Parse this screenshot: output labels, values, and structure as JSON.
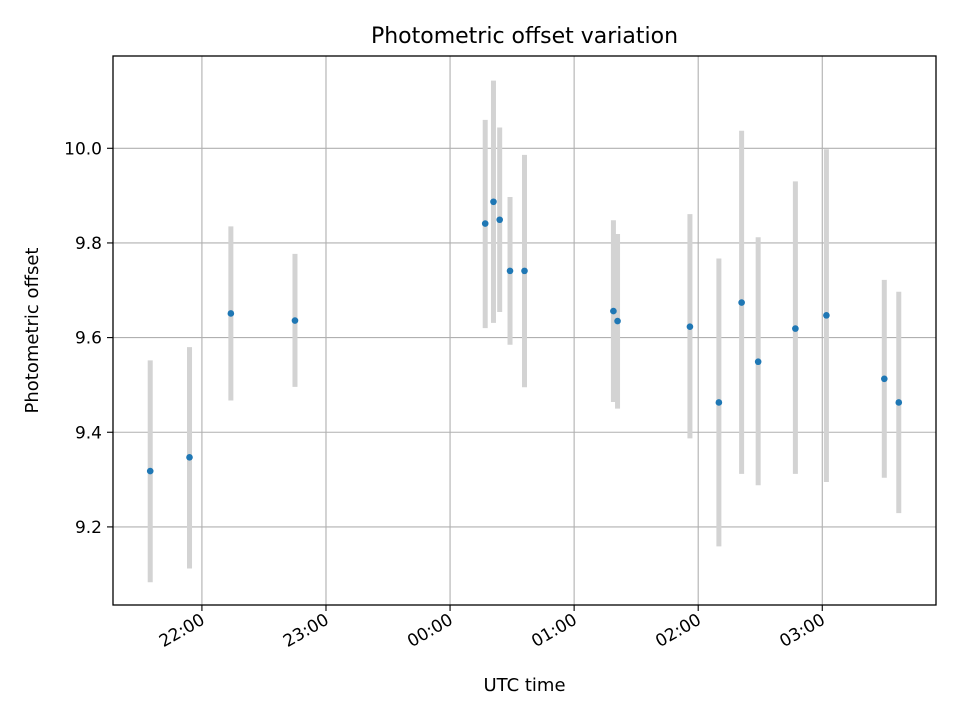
{
  "chart_data": {
    "type": "scatter",
    "title": "Photometric offset variation",
    "xlabel": "UTC time",
    "ylabel": "Photometric offset",
    "x_unit": "UTC time (HH:MM)",
    "xlim": [
      "21:17",
      "03:55"
    ],
    "ylim": [
      9.035,
      10.195
    ],
    "x_ticks": [
      "22:00",
      "23:00",
      "00:00",
      "01:00",
      "02:00",
      "03:00"
    ],
    "y_ticks": [
      9.2,
      9.4,
      9.6,
      9.8,
      10.0
    ],
    "y_tick_labels": [
      "9.2",
      "9.4",
      "9.6",
      "9.8",
      "10.0"
    ],
    "grid": true,
    "colors": {
      "point": "#1f77b4",
      "errorbar": "#d3d3d3",
      "grid": "#b0b0b0"
    },
    "series": [
      {
        "points": [
          {
            "x": "21:35",
            "y": 9.318,
            "err_low": 9.083,
            "err_high": 9.552
          },
          {
            "x": "21:54",
            "y": 9.347,
            "err_low": 9.112,
            "err_high": 9.58
          },
          {
            "x": "22:14",
            "y": 9.651,
            "err_low": 9.467,
            "err_high": 9.835
          },
          {
            "x": "22:45",
            "y": 9.636,
            "err_low": 9.496,
            "err_high": 9.777
          },
          {
            "x": "00:17",
            "y": 9.841,
            "err_low": 9.62,
            "err_high": 10.06
          },
          {
            "x": "00:21",
            "y": 9.887,
            "err_low": 9.631,
            "err_high": 10.143
          },
          {
            "x": "00:24",
            "y": 9.849,
            "err_low": 9.654,
            "err_high": 10.044
          },
          {
            "x": "00:29",
            "y": 9.741,
            "err_low": 9.585,
            "err_high": 9.897
          },
          {
            "x": "00:36",
            "y": 9.741,
            "err_low": 9.495,
            "err_high": 9.986
          },
          {
            "x": "01:19",
            "y": 9.656,
            "err_low": 9.464,
            "err_high": 9.848
          },
          {
            "x": "01:21",
            "y": 9.635,
            "err_low": 9.45,
            "err_high": 9.819
          },
          {
            "x": "01:56",
            "y": 9.623,
            "err_low": 9.387,
            "err_high": 9.861
          },
          {
            "x": "02:10",
            "y": 9.463,
            "err_low": 9.159,
            "err_high": 9.767
          },
          {
            "x": "02:21",
            "y": 9.674,
            "err_low": 9.312,
            "err_high": 10.037
          },
          {
            "x": "02:29",
            "y": 9.549,
            "err_low": 9.288,
            "err_high": 9.812
          },
          {
            "x": "02:47",
            "y": 9.619,
            "err_low": 9.312,
            "err_high": 9.93
          },
          {
            "x": "03:02",
            "y": 9.647,
            "err_low": 9.295,
            "err_high": 9.998
          },
          {
            "x": "03:30",
            "y": 9.513,
            "err_low": 9.304,
            "err_high": 9.722
          },
          {
            "x": "03:37",
            "y": 9.463,
            "err_low": 9.229,
            "err_high": 9.697
          }
        ]
      }
    ]
  }
}
